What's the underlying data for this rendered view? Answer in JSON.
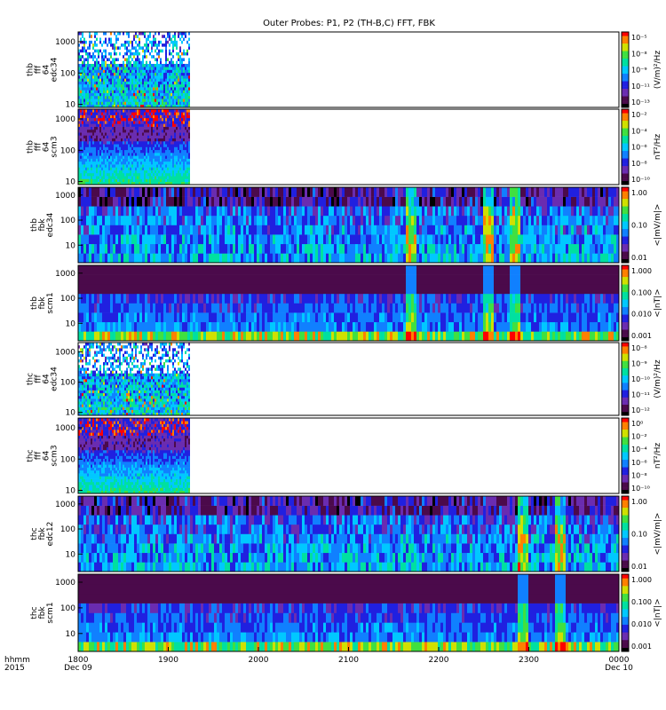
{
  "title": "Outer Probes: P1, P2 (TH-B,C) FFT, FBK",
  "colors": {
    "background": "#ffffff",
    "frame": "#000000",
    "colormap": [
      "#000000",
      "#4b0a4b",
      "#6a2cb0",
      "#2020e0",
      "#1080ff",
      "#00c8ff",
      "#00e0a0",
      "#40e040",
      "#d0e000",
      "#ff8000",
      "#ff0000"
    ]
  },
  "chart_data": {
    "type": "heatmap",
    "x_axis": {
      "label_top": "hhmm",
      "label_bottom": "2015",
      "ticks": [
        "1800",
        "1900",
        "2000",
        "2100",
        "2200",
        "2300",
        "0000"
      ],
      "tick_sublabels": [
        "Dec 09",
        "",
        "",
        "",
        "",
        "",
        "Dec 10"
      ],
      "range": [
        "2015-12-09 18:00",
        "2015-12-10 00:00"
      ]
    },
    "panels": [
      {
        "probe": "thb",
        "labels": [
          "thb",
          "fff",
          "64",
          "edc34"
        ],
        "yticks": [
          "1000",
          "100",
          "10"
        ],
        "ylim": [
          8,
          2048
        ],
        "yscale": "log",
        "colorbar": {
          "label": "(V/m)²/Hz",
          "ticks": [
            "10⁻⁵",
            "10⁻⁸",
            "10⁻⁹",
            "10⁻¹¹",
            "10⁻¹³"
          ],
          "scale": "log"
        },
        "data_end": "19:14",
        "kind": "fff-e"
      },
      {
        "probe": "thb",
        "labels": [
          "thb",
          "fff",
          "64",
          "scm3"
        ],
        "yticks": [
          "1000",
          "100",
          "10"
        ],
        "ylim": [
          8,
          2048
        ],
        "yscale": "log",
        "colorbar": {
          "label": "nT²/Hz",
          "ticks": [
            "10⁻²",
            "10⁻⁴",
            "10⁻⁶",
            "10⁻⁸",
            "10⁻¹⁰"
          ],
          "scale": "log"
        },
        "data_end": "19:14",
        "kind": "fff-b"
      },
      {
        "probe": "thb",
        "labels": [
          "thb",
          "fbk",
          "edc34"
        ],
        "yticks": [
          "1000",
          "100",
          "10"
        ],
        "ylim": [
          2,
          2048
        ],
        "yscale": "log",
        "colorbar": {
          "label": "<|mV/m|>",
          "ticks": [
            "1.00",
            "0.10",
            "0.01"
          ],
          "scale": "log"
        },
        "data_end": "00:00",
        "kind": "fbk-e",
        "bursts": [
          "21:40",
          "22:32",
          "22:50"
        ]
      },
      {
        "probe": "thb",
        "labels": [
          "thb",
          "fbk",
          "scm1"
        ],
        "yticks": [
          "1000",
          "100",
          "10"
        ],
        "ylim": [
          2,
          2048
        ],
        "yscale": "log",
        "colorbar": {
          "label": "<|nT|>",
          "ticks": [
            "1.000",
            "0.100",
            "0.010",
            "0.001"
          ],
          "scale": "log"
        },
        "data_end": "00:00",
        "kind": "fbk-b",
        "bursts": [
          "21:40",
          "22:32",
          "22:50"
        ]
      },
      {
        "probe": "thc",
        "labels": [
          "thc",
          "fff",
          "64",
          "edc34"
        ],
        "yticks": [
          "1000",
          "100",
          "10"
        ],
        "ylim": [
          8,
          2048
        ],
        "yscale": "log",
        "colorbar": {
          "label": "(V/m)²/Hz",
          "ticks": [
            "10⁻⁸",
            "10⁻⁹",
            "10⁻¹⁰",
            "10⁻¹¹",
            "10⁻¹²"
          ],
          "scale": "log"
        },
        "data_end": "19:14",
        "kind": "fff-e"
      },
      {
        "probe": "thc",
        "labels": [
          "thc",
          "fff",
          "64",
          "scm3"
        ],
        "yticks": [
          "1000",
          "100",
          "10"
        ],
        "ylim": [
          8,
          2048
        ],
        "yscale": "log",
        "colorbar": {
          "label": "nT²/Hz",
          "ticks": [
            "10⁰",
            "10⁻²",
            "10⁻⁴",
            "10⁻⁶",
            "10⁻⁸",
            "10⁻¹⁰"
          ],
          "scale": "log"
        },
        "data_end": "19:14",
        "kind": "fff-b"
      },
      {
        "probe": "thc",
        "labels": [
          "thc",
          "fbk",
          "edc12"
        ],
        "yticks": [
          "1000",
          "100",
          "10"
        ],
        "ylim": [
          2,
          2048
        ],
        "yscale": "log",
        "colorbar": {
          "label": "<|mV/m|>",
          "ticks": [
            "1.00",
            "0.10",
            "0.01"
          ],
          "scale": "log"
        },
        "data_end": "00:00",
        "kind": "fbk-e",
        "bursts": [
          "22:55",
          "23:20"
        ]
      },
      {
        "probe": "thc",
        "labels": [
          "thc",
          "fbk",
          "scm1"
        ],
        "yticks": [
          "1000",
          "100",
          "10"
        ],
        "ylim": [
          2,
          2048
        ],
        "yscale": "log",
        "colorbar": {
          "label": "<|nT|>",
          "ticks": [
            "1.000",
            "0.100",
            "0.010",
            "0.001"
          ],
          "scale": "log"
        },
        "data_end": "00:00",
        "kind": "fbk-b",
        "bursts": [
          "22:55",
          "23:20"
        ]
      }
    ]
  }
}
